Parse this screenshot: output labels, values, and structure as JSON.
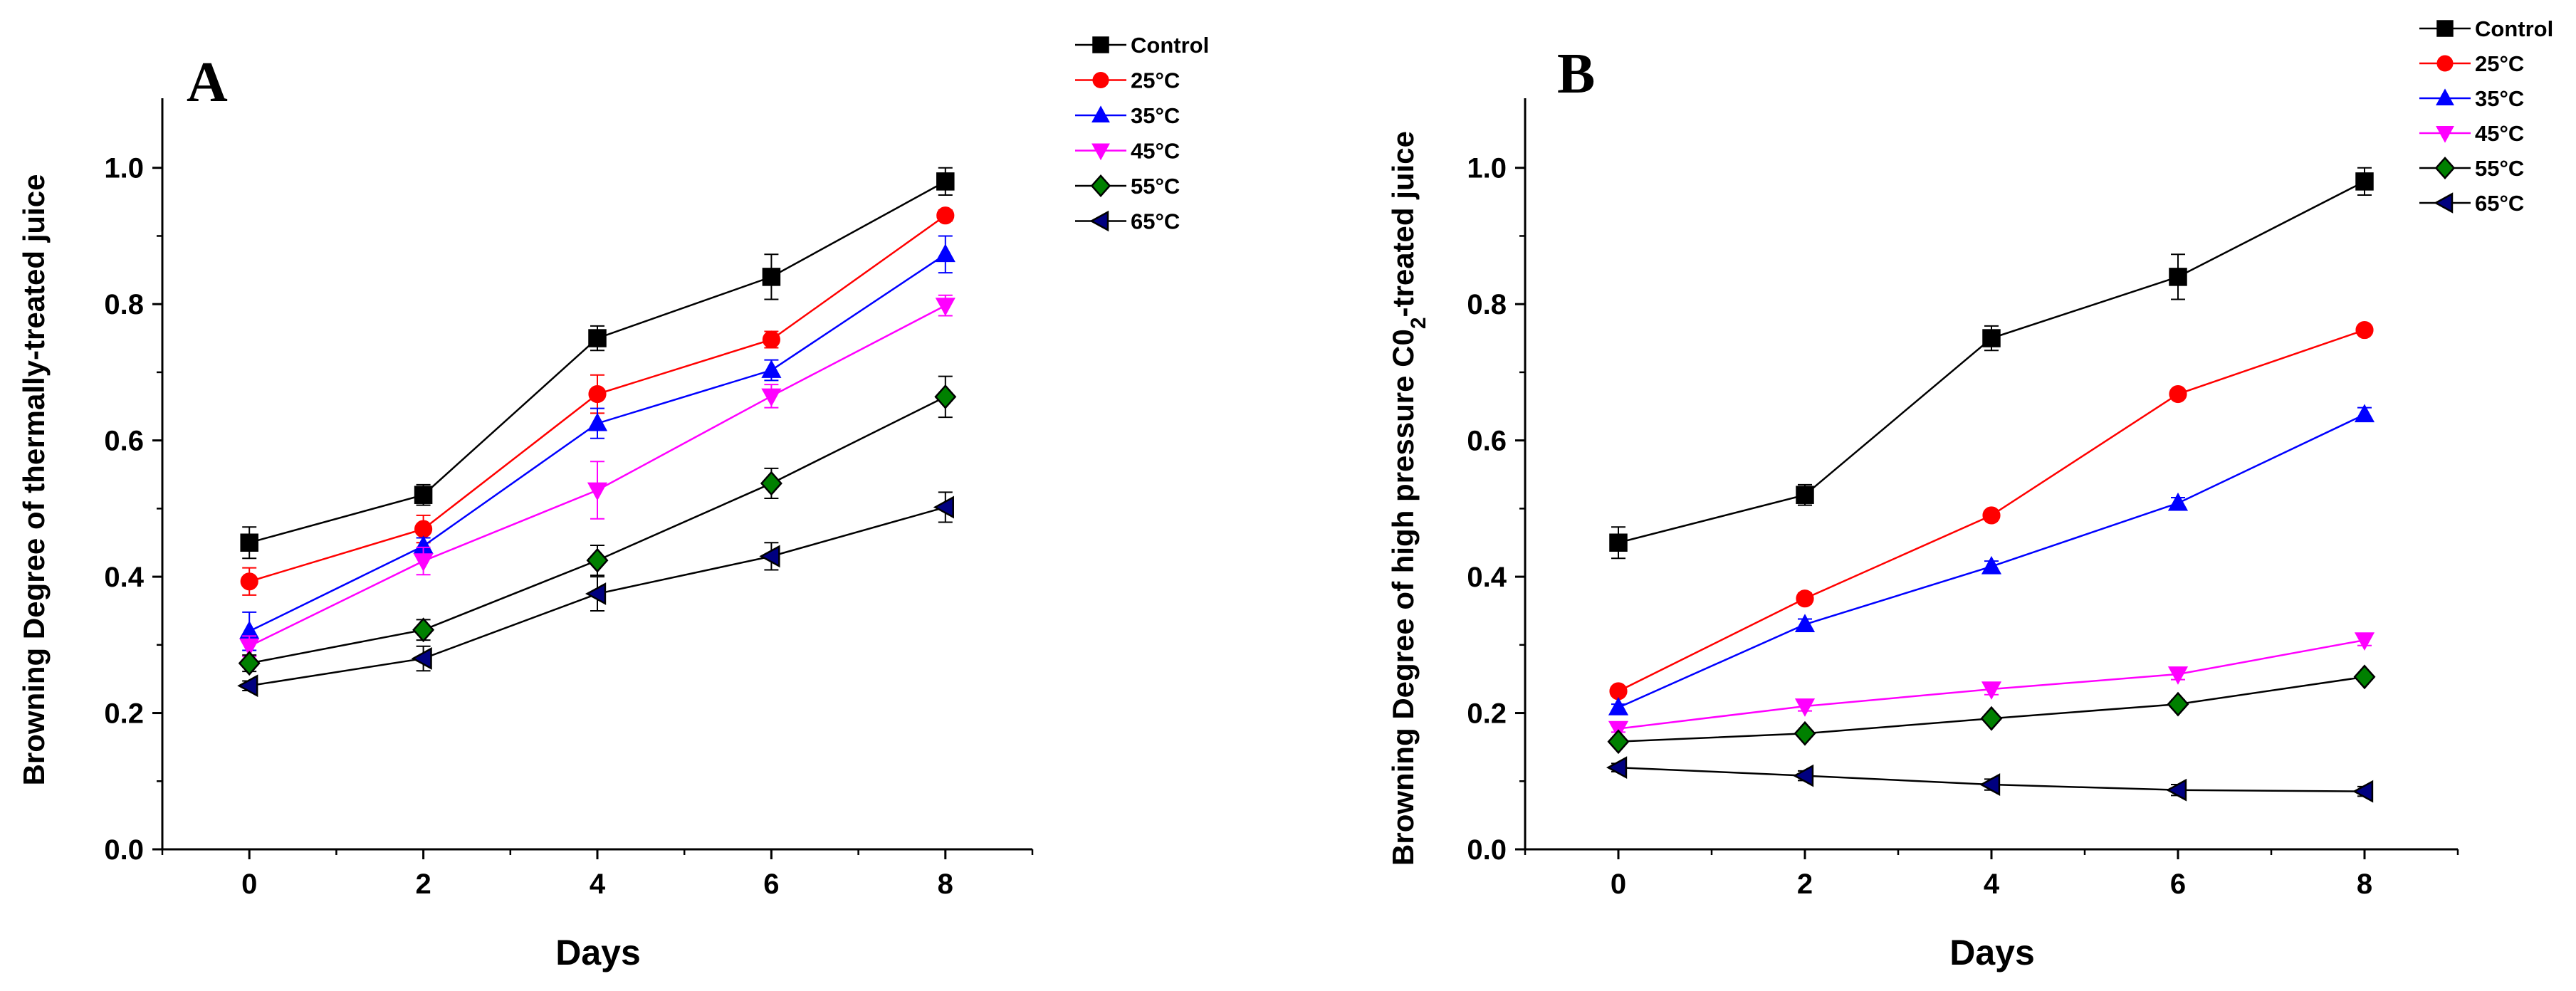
{
  "figure": {
    "legend_unit_suffix": "°C",
    "marker_colors": {
      "Control": "#000000",
      "25°C": "#ff0000",
      "35°C": "#0000ff",
      "45°C": "#ff00ff",
      "55°C": "#008000",
      "65°C": "#000080"
    },
    "line_colors": {
      "Control": "#000000",
      "25°C": "#ff0000",
      "35°C": "#0000ff",
      "45°C": "#ff00ff",
      "55°C": "#000000",
      "65°C": "#000000"
    },
    "marker_shapes": {
      "Control": "square",
      "25°C": "circle",
      "35°C": "triangle-up",
      "45°C": "triangle-down",
      "55°C": "diamond",
      "65°C": "triangle-left"
    }
  },
  "chart_data": [
    {
      "panel": "A",
      "type": "line",
      "xlabel": "Days",
      "ylabel": "Browning Degree of thermally-treated juice",
      "ylabel_parts": [
        {
          "text": "Browning Degree of thermally-treated juice",
          "sub": false
        }
      ],
      "x": [
        0,
        2,
        4,
        6,
        8
      ],
      "xticks": [
        "0",
        "2",
        "4",
        "6",
        "8"
      ],
      "xlim": [
        -1,
        9
      ],
      "ylim": [
        0,
        1.1
      ],
      "yticks": [
        "0.0",
        "0.2",
        "0.4",
        "0.6",
        "0.8",
        "1.0"
      ],
      "legend_position": "top-right, outside plot",
      "series": [
        {
          "name": "Control",
          "values": [
            0.45,
            0.52,
            0.75,
            0.84,
            0.98
          ],
          "errors": [
            0.023,
            0.015,
            0.018,
            0.033,
            0.02
          ]
        },
        {
          "name": "25°C",
          "values": [
            0.393,
            0.47,
            0.668,
            0.748,
            0.93
          ],
          "errors": [
            0.02,
            0.02,
            0.028,
            0.012,
            0.008
          ]
        },
        {
          "name": "35°C",
          "values": [
            0.32,
            0.445,
            0.625,
            0.703,
            0.873
          ],
          "errors": [
            0.028,
            0.012,
            0.022,
            0.015,
            0.027
          ]
        },
        {
          "name": "45°C",
          "values": [
            0.298,
            0.423,
            0.527,
            0.665,
            0.798
          ],
          "errors": [
            0.015,
            0.02,
            0.042,
            0.017,
            0.015
          ]
        },
        {
          "name": "55°C",
          "values": [
            0.273,
            0.322,
            0.424,
            0.537,
            0.664
          ],
          "errors": [
            0.012,
            0.015,
            0.022,
            0.022,
            0.03
          ]
        },
        {
          "name": "65°C",
          "values": [
            0.24,
            0.28,
            0.375,
            0.43,
            0.502
          ],
          "errors": [
            0.007,
            0.018,
            0.025,
            0.02,
            0.022
          ]
        }
      ]
    },
    {
      "panel": "B",
      "type": "line",
      "xlabel": "Days",
      "ylabel": "Browning Degree of high pressure C0₂-treated juice",
      "ylabel_parts": [
        {
          "text": "Browning Degree of high pressure C0",
          "sub": false
        },
        {
          "text": "2",
          "sub": true
        },
        {
          "text": "-treated juice",
          "sub": false
        }
      ],
      "x": [
        0,
        2,
        4,
        6,
        8
      ],
      "xticks": [
        "0",
        "2",
        "4",
        "6",
        "8"
      ],
      "xlim": [
        -1,
        9
      ],
      "ylim": [
        0,
        1.1
      ],
      "yticks": [
        "0.0",
        "0.2",
        "0.4",
        "0.6",
        "0.8",
        "1.0"
      ],
      "legend_position": "top-right, outside plot",
      "series": [
        {
          "name": "Control",
          "values": [
            0.45,
            0.52,
            0.75,
            0.84,
            0.98
          ],
          "errors": [
            0.023,
            0.015,
            0.018,
            0.033,
            0.02
          ]
        },
        {
          "name": "25°C",
          "values": [
            0.232,
            0.368,
            0.49,
            0.668,
            0.762
          ],
          "errors": [
            0.005,
            0.008,
            0.006,
            0.005,
            0.006
          ]
        },
        {
          "name": "35°C",
          "values": [
            0.208,
            0.33,
            0.415,
            0.508,
            0.638
          ],
          "errors": [
            0.005,
            0.008,
            0.008,
            0.008,
            0.01
          ]
        },
        {
          "name": "45°C",
          "values": [
            0.177,
            0.21,
            0.235,
            0.257,
            0.307
          ],
          "errors": [
            0.005,
            0.007,
            0.008,
            0.008,
            0.008
          ]
        },
        {
          "name": "55°C",
          "values": [
            0.158,
            0.17,
            0.192,
            0.213,
            0.253
          ],
          "errors": [
            0.004,
            0.005,
            0.005,
            0.006,
            0.005
          ]
        },
        {
          "name": "65°C",
          "values": [
            0.12,
            0.108,
            0.095,
            0.087,
            0.085
          ],
          "errors": [
            0.006,
            0.007,
            0.008,
            0.008,
            0.007
          ]
        }
      ]
    }
  ]
}
